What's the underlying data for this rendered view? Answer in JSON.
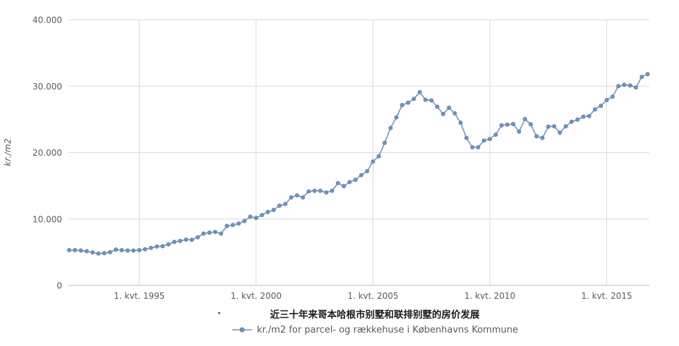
{
  "page": {
    "background": "#ffffff"
  },
  "footer": {
    "stray_dot": "·"
  },
  "chart_data": {
    "type": "line",
    "title": "近三十年来哥本哈根市别墅和联排别墅的房价发展",
    "ylabel": "kr./m2",
    "legend": "kr./m2 for parcel- og rækkehuse i Københavns Kommune",
    "legend_position": "bottom-center",
    "grid": true,
    "ylim": [
      0,
      40000
    ],
    "y_ticks": [
      {
        "value": 0,
        "label": "0"
      },
      {
        "value": 10000,
        "label": "10.000"
      },
      {
        "value": 20000,
        "label": "20.000"
      },
      {
        "value": 30000,
        "label": "30.000"
      },
      {
        "value": 40000,
        "label": "40.000"
      }
    ],
    "x_ticks": [
      {
        "index": 12,
        "label": "1. kvt. 1995"
      },
      {
        "index": 32,
        "label": "1. kvt. 2000"
      },
      {
        "index": 52,
        "label": "1. kvt. 2005"
      },
      {
        "index": 72,
        "label": "1. kvt. 2010"
      },
      {
        "index": 92,
        "label": "1. kvt. 2015"
      }
    ],
    "x_range_estimate": "quarterly data, 1. kvt. 1992 to 4. kvt. 2016 (read from axis gridlines)",
    "series": [
      {
        "name": "kr./m2 for parcel- og rækkehuse i Københavns Kommune",
        "color": "#7494bb",
        "marker_stroke": "#5a7ea8",
        "values": [
          5300,
          5300,
          5250,
          5150,
          4950,
          4800,
          4850,
          5000,
          5400,
          5300,
          5250,
          5250,
          5300,
          5450,
          5650,
          5850,
          5900,
          6200,
          6550,
          6700,
          6900,
          6850,
          7250,
          7800,
          7950,
          8050,
          7800,
          8950,
          9100,
          9300,
          9700,
          10350,
          10150,
          10600,
          11050,
          11350,
          12000,
          12250,
          13250,
          13550,
          13250,
          14150,
          14250,
          14250,
          14000,
          14250,
          15400,
          14950,
          15550,
          15900,
          16600,
          17200,
          18650,
          19450,
          21450,
          23700,
          25300,
          27150,
          27500,
          28100,
          29100,
          27950,
          27850,
          26900,
          25800,
          26750,
          25900,
          24500,
          22200,
          20800,
          20800,
          21800,
          22050,
          22700,
          24100,
          24200,
          24300,
          23150,
          25050,
          24250,
          22450,
          22200,
          23900,
          23950,
          23000,
          23950,
          24650,
          24950,
          25400,
          25500,
          26500,
          27050,
          27900,
          28400,
          30000,
          30200,
          30100,
          29800,
          31400,
          31800
        ]
      }
    ],
    "colors": {
      "gridline": "#d9d9d9",
      "axis_line": "#bfbfbf",
      "tick_label": "#595959",
      "title_color": "#1a1a1a"
    }
  }
}
